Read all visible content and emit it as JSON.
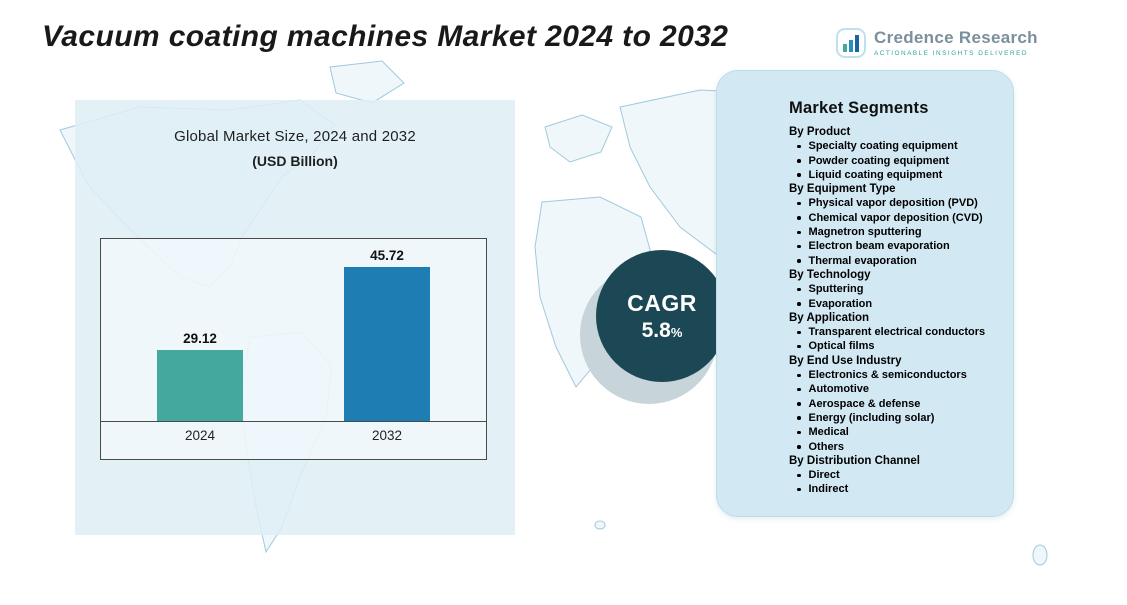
{
  "header": {
    "title": "Vacuum coating machines Market 2024 to 2032",
    "logo": {
      "name": "Credence Research",
      "tagline": "Actionable Insights Delivered"
    }
  },
  "chart_data": {
    "type": "bar",
    "title": "Global Market Size, 2024 and 2032",
    "subtitle": "(USD Billion)",
    "categories": [
      "2024",
      "2032"
    ],
    "values": [
      29.12,
      45.72
    ],
    "bar_colors": [
      "#45a89f",
      "#1e7db3"
    ],
    "ylim": [
      15,
      50
    ],
    "grid": false,
    "legend": "none"
  },
  "cagr": {
    "label": "CAGR",
    "value": "5.8",
    "percent_sign": "%"
  },
  "segments": {
    "title": "Market Segments",
    "groups": [
      {
        "heading": "By Product",
        "items": [
          "Specialty coating equipment",
          "Powder coating equipment",
          "Liquid coating equipment"
        ]
      },
      {
        "heading": "By Equipment Type",
        "items": [
          "Physical vapor deposition (PVD)",
          "Chemical vapor deposition (CVD)",
          "Magnetron sputtering",
          "Electron beam evaporation",
          "Thermal evaporation"
        ]
      },
      {
        "heading": "By Technology",
        "items": [
          "Sputtering",
          "Evaporation"
        ]
      },
      {
        "heading": "By Application",
        "items": [
          "Transparent electrical conductors",
          "Optical films"
        ]
      },
      {
        "heading": "By End Use Industry",
        "items": [
          "Electronics & semiconductors",
          "Automotive",
          "Aerospace & defense",
          "Energy (including solar)",
          "Medical",
          "Others"
        ]
      },
      {
        "heading": "By Distribution Channel",
        "items": [
          "Direct",
          "Indirect"
        ]
      }
    ]
  },
  "colors": {
    "bar_2024": "#45a89f",
    "bar_2032": "#1e7db3",
    "cagr_circle": "#1c4855",
    "left_panel_bg": "#deeef6",
    "segments_panel_bg": "#d2e9f4",
    "map_line": "#9fc9dd"
  }
}
